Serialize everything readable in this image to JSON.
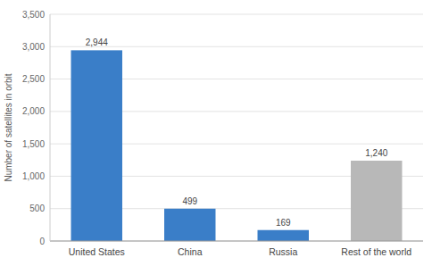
{
  "chart_data": {
    "type": "bar",
    "categories": [
      "United States",
      "China",
      "Russia",
      "Rest of the world"
    ],
    "values": [
      2944,
      499,
      169,
      1240
    ],
    "value_labels": [
      "2,944",
      "499",
      "169",
      "1,240"
    ],
    "colors": [
      "#3a7ec8",
      "#3a7ec8",
      "#3a7ec8",
      "#b8b8b8"
    ],
    "ylabel": "Number of satellites in orbit",
    "ylim": [
      0,
      3500
    ],
    "yticks": [
      0,
      500,
      {
        "value": 1000,
        "label": "1,000"
      },
      {
        "value": 1500,
        "label": "1,500"
      },
      {
        "value": 2000,
        "label": "2,000"
      },
      {
        "value": 2500,
        "label": "2,500"
      },
      {
        "value": 3000,
        "label": "3,000"
      },
      {
        "value": 3500,
        "label": "3,500"
      }
    ],
    "grid": true,
    "data_labels": true
  }
}
